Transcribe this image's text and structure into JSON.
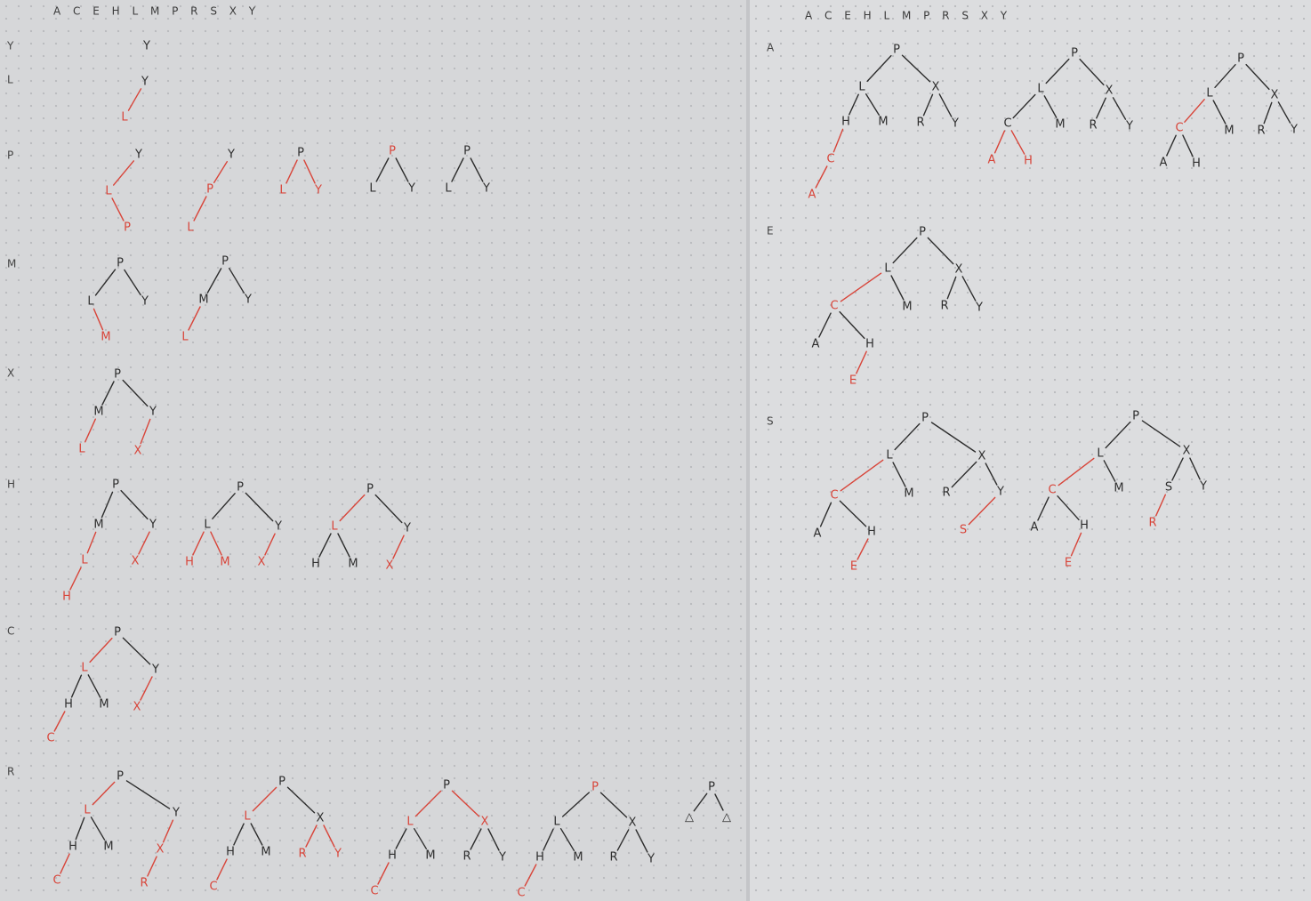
{
  "colors": {
    "black": "#2e2e2e",
    "red": "#d8453a"
  },
  "left_sheet": {
    "header": "A C E H L M P R S X Y",
    "rows": [
      {
        "key": "Y",
        "y": 52
      },
      {
        "key": "L",
        "y": 90
      },
      {
        "key": "P",
        "y": 175
      },
      {
        "key": "M",
        "y": 297
      },
      {
        "key": "X",
        "y": 420
      },
      {
        "key": "H",
        "y": 545
      },
      {
        "key": "C",
        "y": 710
      },
      {
        "key": "R",
        "y": 868
      }
    ]
  },
  "right_sheet": {
    "header": "A C E H L M P R S X Y",
    "rows": [
      {
        "key": "A",
        "y": 54
      },
      {
        "key": "E",
        "y": 260
      },
      {
        "key": "S",
        "y": 474
      }
    ]
  }
}
